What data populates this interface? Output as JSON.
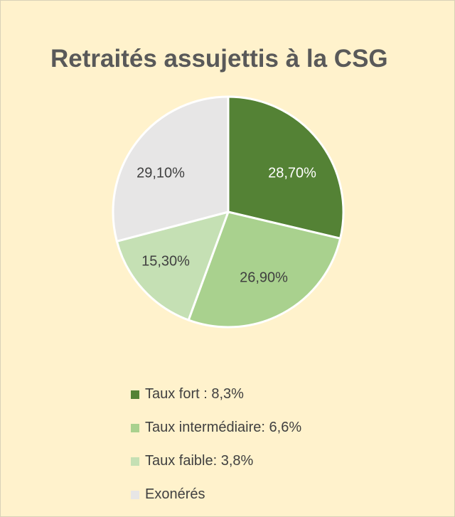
{
  "colors": {
    "background": "#fff2cc",
    "slice_border": "#ffffff"
  },
  "chart_data": {
    "type": "pie",
    "title": "Retraités assujettis à la CSG",
    "slices": [
      {
        "name": "Taux fort : 8,3%",
        "value": 28.7,
        "label": "28,70%",
        "color": "#548235",
        "label_color": "#ffffff"
      },
      {
        "name": "Taux intermédiaire: 6,6%",
        "value": 26.9,
        "label": "26,90%",
        "color": "#a9d18e",
        "label_color": "#404040"
      },
      {
        "name": "Taux faible: 3,8%",
        "value": 15.3,
        "label": "15,30%",
        "color": "#c5e0b4",
        "label_color": "#404040"
      },
      {
        "name": "Exonérés",
        "value": 29.1,
        "label": "29,10%",
        "color": "#e7e6e6",
        "label_color": "#404040"
      }
    ],
    "legend_position": "bottom"
  }
}
